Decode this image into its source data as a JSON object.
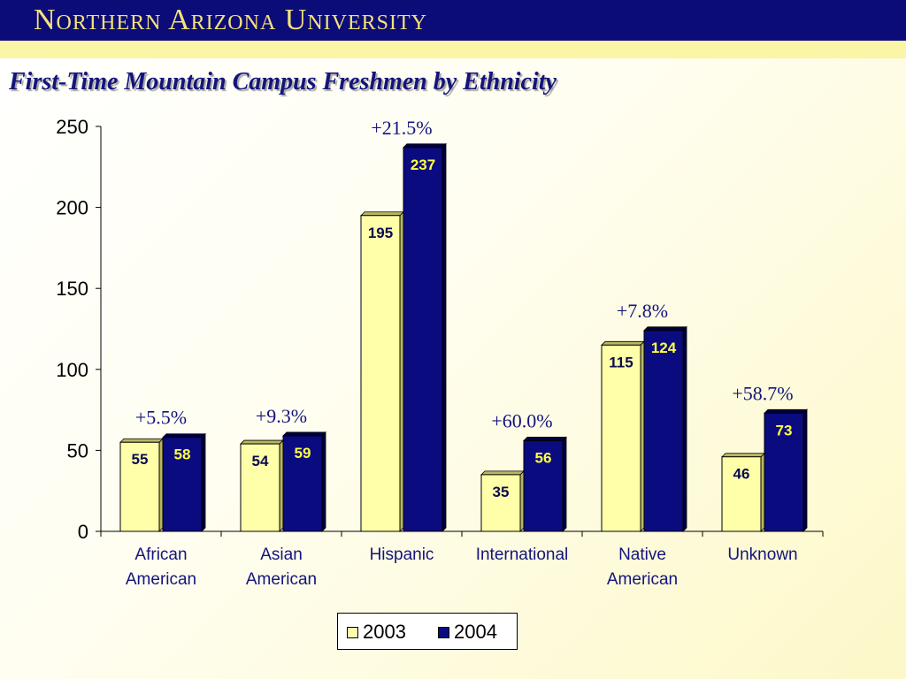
{
  "header": {
    "title": "Northern Arizona University"
  },
  "slide": {
    "title": "First-Time Mountain Campus Freshmen by Ethnicity"
  },
  "colors": {
    "header_bg": "#0c0c78",
    "header_text": "#f4e27a",
    "series_2003": "#ffffaa",
    "series_2004": "#0b0b80"
  },
  "chart_data": {
    "type": "bar",
    "title": "First-Time Mountain Campus Freshmen by Ethnicity",
    "categories": [
      "African\nAmerican",
      "Asian\nAmerican",
      "Hispanic",
      "International",
      "Native\nAmerican",
      "Unknown"
    ],
    "series": [
      {
        "name": "2003",
        "values": [
          55,
          54,
          195,
          35,
          115,
          46
        ]
      },
      {
        "name": "2004",
        "values": [
          58,
          59,
          237,
          56,
          124,
          73
        ]
      }
    ],
    "changes": [
      "+5.5%",
      "+9.3%",
      "+21.5%",
      "+60.0%",
      "+7.8%",
      "+58.7%"
    ],
    "yticks": [
      0,
      50,
      100,
      150,
      200,
      250
    ],
    "ylim": [
      0,
      250
    ],
    "xlabel": "",
    "ylabel": "",
    "grid": false,
    "legend": "bottom-center"
  }
}
